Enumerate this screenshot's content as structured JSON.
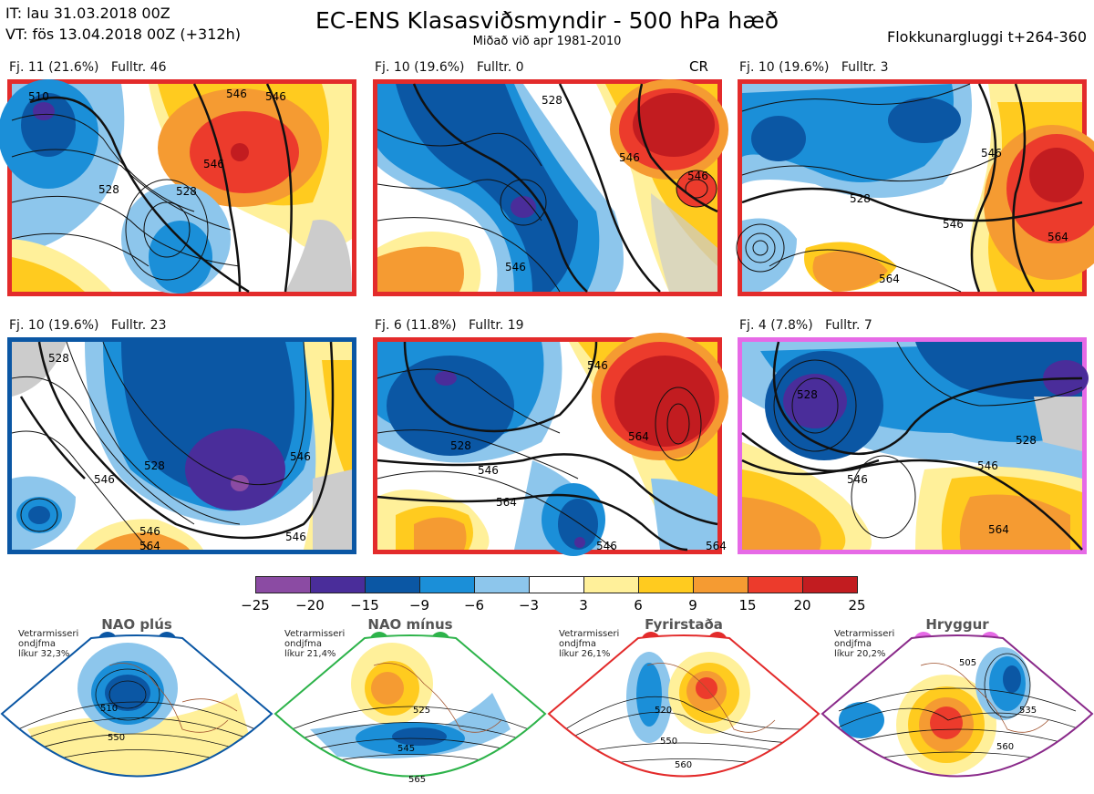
{
  "header": {
    "it_line": "IT: lau 31.03.2018 00Z",
    "vt_line": "VT: fös 13.04.2018 00Z  (+312h)",
    "title": "EC-ENS Klasasviðsmyndir - 500 hPa hæð",
    "subtitle": "Miðað við apr 1981-2010",
    "window": "Flokkunargluggi t+264-360"
  },
  "colors": {
    "red": "#e32b2b",
    "blue": "#0b57a4",
    "magenta": "#e66ae6",
    "green": "#2db34a",
    "purple": "#8a2a8a"
  },
  "panels": [
    {
      "label": "Fj. 11 (21.6%)",
      "fulltr": "Fulltr. 46",
      "border": "red",
      "contours": [
        "510",
        "528",
        "546",
        "546",
        "528",
        "546"
      ]
    },
    {
      "label": "Fj. 10 (19.6%)",
      "fulltr": "Fulltr. 0",
      "border": "red",
      "cr": "CR",
      "contours": [
        "528",
        "546",
        "546",
        "546"
      ]
    },
    {
      "label": "Fj. 10 (19.6%)",
      "fulltr": "Fulltr. 3",
      "border": "red",
      "contours": [
        "528",
        "546",
        "546",
        "564",
        "564"
      ]
    },
    {
      "label": "Fj. 10 (19.6%)",
      "fulltr": "Fulltr. 23",
      "border": "blue",
      "contours": [
        "528",
        "546",
        "528",
        "546",
        "546",
        "564",
        "546"
      ]
    },
    {
      "label": "Fj. 6 (11.8%)",
      "fulltr": "Fulltr. 19",
      "border": "red",
      "contours": [
        "546",
        "528",
        "564",
        "546",
        "564",
        "546",
        "564"
      ]
    },
    {
      "label": "Fj. 4 (7.8%)",
      "fulltr": "Fulltr. 7",
      "border": "magenta",
      "contours": [
        "528",
        "528",
        "546",
        "564",
        "546"
      ]
    }
  ],
  "colorbar": {
    "colors": [
      "#8b4ba3",
      "#4a2d9a",
      "#0b57a4",
      "#1b8fd8",
      "#8dc6ec",
      "#ffffff",
      "#fff09a",
      "#ffcb1f",
      "#f59b32",
      "#ec3b2c",
      "#c21c20"
    ],
    "ticks": [
      "−25",
      "−20",
      "−15",
      "−9",
      "−6",
      "−3",
      "3",
      "6",
      "9",
      "15",
      "20",
      "25"
    ]
  },
  "regimes": [
    {
      "name": "NAO plús",
      "note": [
        "Vetrarmisseri",
        "ondjfma",
        "líkur 32,3%"
      ],
      "dot_color": "#0b57a4",
      "frame_color": "#0b57a4",
      "contour_labels": [
        "510",
        "550"
      ]
    },
    {
      "name": "NAO mínus",
      "note": [
        "Vetrarmisseri",
        "ondjfma",
        "líkur 21,4%"
      ],
      "dot_color": "#2db34a",
      "frame_color": "#2db34a",
      "contour_labels": [
        "525",
        "545",
        "565"
      ]
    },
    {
      "name": "Fyrirstaða",
      "note": [
        "Vetrarmisseri",
        "ondjfma",
        "líkur 26,1%"
      ],
      "dot_color": "#e32b2b",
      "frame_color": "#e32b2b",
      "contour_labels": [
        "520",
        "550",
        "560"
      ]
    },
    {
      "name": "Hryggur",
      "note": [
        "Vetrarmisseri",
        "ondjfma",
        "líkur 20,2%"
      ],
      "dot_color": "#e66ae6",
      "frame_color": "#8a2a8a",
      "contour_labels": [
        "505",
        "535",
        "560"
      ]
    }
  ]
}
